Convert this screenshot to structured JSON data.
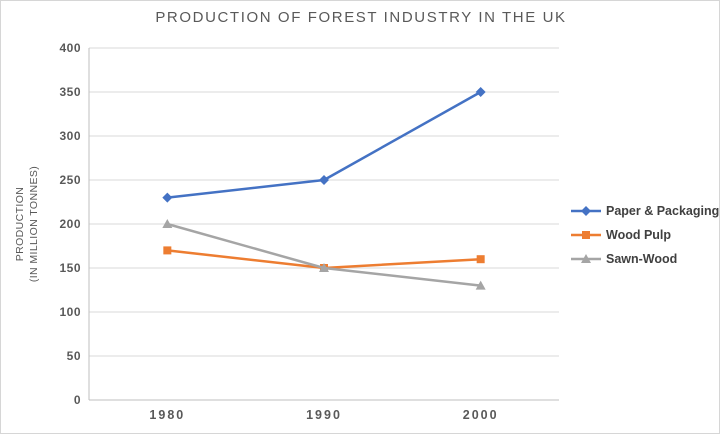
{
  "window": {
    "background": "#ffffff",
    "border_color": "#d6d6d6"
  },
  "chart_data": {
    "type": "line",
    "title": "PRODUCTION OF FOREST INDUSTRY IN THE UK",
    "ylabel_lines": [
      "PRODUCTION",
      "(IN MILLION TONNES)"
    ],
    "xlabel": "",
    "categories": [
      "1980",
      "1990",
      "2000"
    ],
    "series": [
      {
        "name": "Paper & Packaging",
        "values": [
          230,
          250,
          350
        ],
        "color": "#4472C4",
        "marker": "diamond"
      },
      {
        "name": "Wood Pulp",
        "values": [
          170,
          150,
          160
        ],
        "color": "#ED7D31",
        "marker": "square"
      },
      {
        "name": "Sawn-Wood",
        "values": [
          200,
          150,
          130
        ],
        "color": "#A5A5A5",
        "marker": "triangle"
      }
    ],
    "ylim": [
      0,
      400
    ],
    "ytick_step": 50,
    "grid": true,
    "legend_position": "right",
    "colors": {
      "grid": "#d9d9d9",
      "axis": "#bfbfbf",
      "title_text": "#595959",
      "tick_text": "#595959",
      "axis_title_text": "#595959",
      "legend_text": "#404040"
    }
  }
}
